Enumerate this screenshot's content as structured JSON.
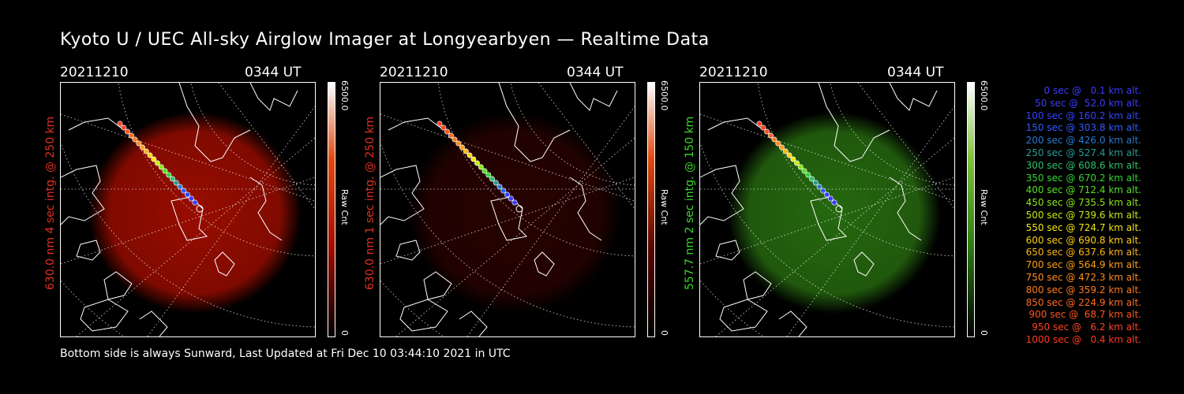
{
  "title": "Kyoto U / UEC All-sky Airglow Imager at Longyearbyen — Realtime Data",
  "panels": [
    {
      "date": "20211210",
      "time": "0344 UT",
      "ylabel": "630.0 nm 4 sec intg. @ 250 km",
      "ylabel_color": "#e0301e",
      "cbar_max": "6500.0",
      "cbar_min": "0",
      "cbar_unit": "Raw Cnt",
      "glow_color": "#a00d00",
      "brightness": 1.0
    },
    {
      "date": "20211210",
      "time": "0344 UT",
      "ylabel": "630.0 nm 1 sec intg. @ 250 km",
      "ylabel_color": "#e0301e",
      "cbar_max": "6500.0",
      "cbar_min": "0",
      "cbar_unit": "Raw Cnt",
      "glow_color": "#5a0600",
      "brightness": 0.45
    },
    {
      "date": "20211210",
      "time": "0344 UT",
      "ylabel": "557.7 nm 2 sec intg. @ 150 km",
      "ylabel_color": "#3cd62a",
      "cbar_max": "6500.0",
      "cbar_min": "0",
      "cbar_unit": "Raw Cnt",
      "glow_color": "#2c7a12",
      "brightness": 0.9
    }
  ],
  "footer": "Bottom side is always Sunward, Last Updated at Fri Dec 10 03:44:10 2021 in UTC",
  "legend": [
    {
      "text": "0 sec @   0.1 km alt.",
      "color": "#3b3bff"
    },
    {
      "text": "50 sec @  52.0 km alt.",
      "color": "#3b3bff"
    },
    {
      "text": "100 sec @ 160.2 km alt.",
      "color": "#3344ff"
    },
    {
      "text": "150 sec @ 303.8 km alt.",
      "color": "#2f5cff"
    },
    {
      "text": "200 sec @ 426.0 km alt.",
      "color": "#2a7ad0"
    },
    {
      "text": "250 sec @ 527.4 km alt.",
      "color": "#2a9a9a"
    },
    {
      "text": "300 sec @ 608.6 km alt.",
      "color": "#2cc06a"
    },
    {
      "text": "350 sec @ 670.2 km alt.",
      "color": "#33d433"
    },
    {
      "text": "400 sec @ 712.4 km alt.",
      "color": "#55e022"
    },
    {
      "text": "450 sec @ 735.5 km alt.",
      "color": "#8ae61a"
    },
    {
      "text": "500 sec @ 739.6 km alt.",
      "color": "#c4ea14"
    },
    {
      "text": "550 sec @ 724.7 km alt.",
      "color": "#f2e612"
    },
    {
      "text": "600 sec @ 690.8 km alt.",
      "color": "#ffd010"
    },
    {
      "text": "650 sec @ 637.6 km alt.",
      "color": "#ffb512"
    },
    {
      "text": "700 sec @ 564.9 km alt.",
      "color": "#ff9e18"
    },
    {
      "text": "750 sec @ 472.3 km alt.",
      "color": "#ff8c1a"
    },
    {
      "text": "800 sec @ 359.2 km alt.",
      "color": "#ff7a1c"
    },
    {
      "text": "850 sec @ 224.9 km alt.",
      "color": "#ff6a20"
    },
    {
      "text": "900 sec @  68.7 km alt.",
      "color": "#ff5520"
    },
    {
      "text": "950 sec @   6.2 km alt.",
      "color": "#ff4422"
    },
    {
      "text": "1000 sec @   0.4 km alt.",
      "color": "#ff3a22"
    }
  ]
}
